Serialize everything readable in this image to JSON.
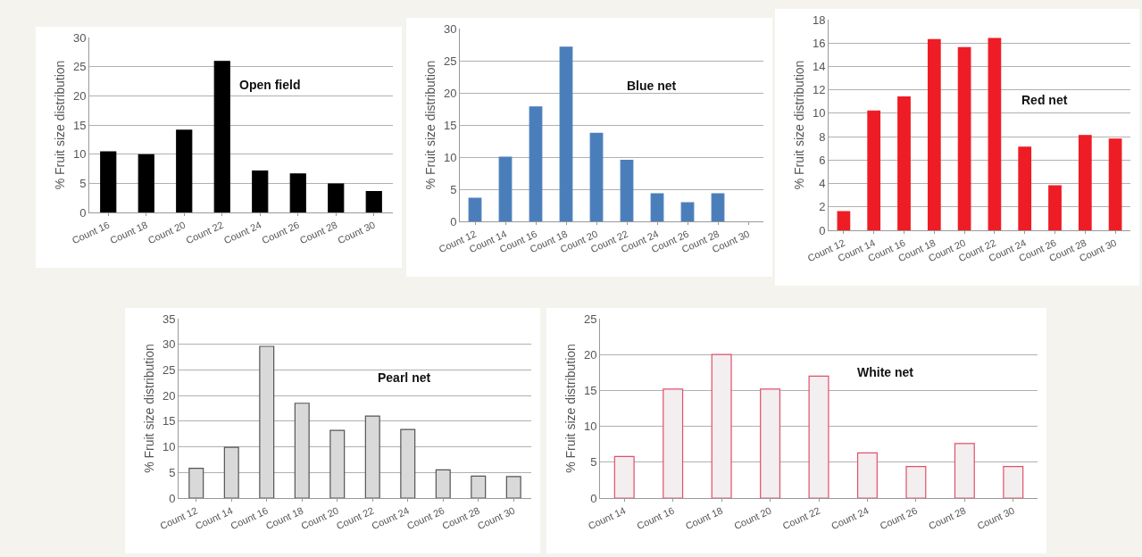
{
  "chart_data": [
    {
      "type": "bar",
      "title": "Open field",
      "ylabel": "% Fruit size distribution",
      "categories": [
        "Count 16",
        "Count 18",
        "Count 20",
        "Count 22",
        "Count 24",
        "Count 26",
        "Count 28",
        "Count 30"
      ],
      "values": [
        10.4,
        9.9,
        14.1,
        25.9,
        7.1,
        6.6,
        4.9,
        3.6
      ],
      "color": "#000000",
      "ylim": [
        0,
        30
      ],
      "yticks": [
        0,
        5,
        10,
        15,
        20,
        25,
        30
      ],
      "grid": "y"
    },
    {
      "type": "bar",
      "title": "Blue net",
      "ylabel": "% Fruit size distribution",
      "categories": [
        "Count 12",
        "Count 14",
        "Count 16",
        "Count 18",
        "Count 20",
        "Count 22",
        "Count 24",
        "Count 26",
        "Count 28",
        "Count 30"
      ],
      "values": [
        3.6,
        10,
        17.8,
        27.1,
        13.7,
        9.5,
        4.3,
        2.9,
        4.3,
        null
      ],
      "color": "#4a7ebb",
      "ylim": [
        0,
        30
      ],
      "yticks": [
        0,
        5,
        10,
        15,
        20,
        25,
        30
      ],
      "grid": "y"
    },
    {
      "type": "bar",
      "title": "Red net",
      "ylabel": "% Fruit size distribution",
      "categories": [
        "Count 12",
        "Count 14",
        "Count 16",
        "Count 18",
        "Count 20",
        "Count 22",
        "Count 24",
        "Count 26",
        "Count 28",
        "Count 30"
      ],
      "values": [
        1.6,
        10.2,
        11.4,
        16.3,
        15.6,
        16.4,
        7.1,
        3.8,
        8.1,
        7.8
      ],
      "color": "#ee1c25",
      "ylim": [
        0,
        18
      ],
      "yticks": [
        0,
        2,
        4,
        6,
        8,
        10,
        12,
        14,
        16,
        18
      ],
      "grid": "y"
    },
    {
      "type": "bar",
      "title": "Pearl net",
      "ylabel": "% Fruit size distribution",
      "categories": [
        "Count 12",
        "Count 14",
        "Count 16",
        "Count 18",
        "Count 20",
        "Count 22",
        "Count 24",
        "Count 26",
        "Count 28",
        "Count 30"
      ],
      "values": [
        5.8,
        9.9,
        29.6,
        18.5,
        13.2,
        16.0,
        13.4,
        5.5,
        4.3,
        4.2
      ],
      "color": "#d9d9d9",
      "ylim": [
        0,
        35
      ],
      "yticks": [
        0,
        5,
        10,
        15,
        20,
        25,
        30,
        35
      ],
      "grid": "y"
    },
    {
      "type": "bar",
      "title": "White net",
      "ylabel": "% Fruit size distribution",
      "categories": [
        "Count 14",
        "Count 16",
        "Count 18",
        "Count 20",
        "Count 22",
        "Count 24",
        "Count 26",
        "Count 28",
        "Count 30"
      ],
      "values": [
        5.8,
        15.2,
        20,
        15.2,
        17,
        6.3,
        4.4,
        7.6,
        4.4
      ],
      "color": "#f3eef0",
      "ylim": [
        0,
        25
      ],
      "yticks": [
        0,
        5,
        10,
        15,
        20,
        25
      ],
      "grid": "y"
    }
  ]
}
